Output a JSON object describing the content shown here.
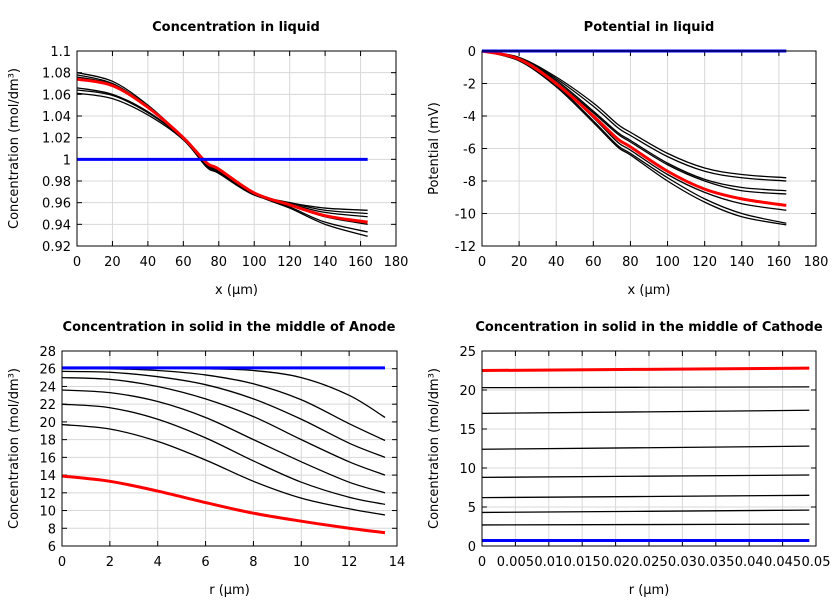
{
  "chart_data": [
    {
      "type": "line",
      "title": "Concentration in liquid",
      "xlabel": "x (µm)",
      "ylabel": "Concentration (mol/dm³)",
      "xlim": [
        0,
        180
      ],
      "ylim": [
        0.92,
        1.1
      ],
      "grid": true,
      "xticks": [
        "0",
        "20",
        "40",
        "60",
        "80",
        "100",
        "120",
        "140",
        "160",
        "180"
      ],
      "yticks": [
        "0.92",
        "0.94",
        "0.96",
        "0.98",
        "1",
        "1.02",
        "1.04",
        "1.06",
        "1.08",
        "1.1"
      ],
      "x": [
        0,
        20,
        40,
        60,
        73,
        80,
        100,
        120,
        140,
        164
      ],
      "series": [
        {
          "color": "#000000",
          "values": [
            1.08,
            1.072,
            1.05,
            1.02,
            0.996,
            0.99,
            0.968,
            0.955,
            0.94,
            0.929
          ]
        },
        {
          "color": "#000000",
          "values": [
            1.078,
            1.07,
            1.049,
            1.02,
            0.996,
            0.99,
            0.968,
            0.956,
            0.942,
            0.933
          ]
        },
        {
          "color": "#000000",
          "values": [
            1.076,
            1.069,
            1.048,
            1.02,
            0.997,
            0.991,
            0.969,
            0.958,
            0.947,
            0.94
          ]
        },
        {
          "color": "#000000",
          "values": [
            1.066,
            1.06,
            1.044,
            1.019,
            0.995,
            0.989,
            0.968,
            0.959,
            0.951,
            0.947
          ]
        },
        {
          "color": "#000000",
          "values": [
            1.064,
            1.059,
            1.043,
            1.019,
            0.994,
            0.988,
            0.968,
            0.96,
            0.953,
            0.95
          ]
        },
        {
          "color": "#000000",
          "values": [
            1.061,
            1.056,
            1.041,
            1.018,
            0.993,
            0.987,
            0.967,
            0.96,
            0.955,
            0.953
          ]
        },
        {
          "color": "#ff0000",
          "values": [
            1.074,
            1.068,
            1.048,
            1.02,
            0.997,
            0.991,
            0.969,
            0.958,
            0.948,
            0.942
          ]
        },
        {
          "color": "#0000ff",
          "values": [
            1,
            1,
            1,
            1,
            1,
            1,
            1,
            1,
            1,
            1
          ]
        }
      ]
    },
    {
      "type": "line",
      "title": "Potential in liquid",
      "xlabel": "x (µm)",
      "ylabel": "Potential (mV)",
      "xlim": [
        0,
        180
      ],
      "ylim": [
        -12,
        0
      ],
      "grid": true,
      "xticks": [
        "0",
        "20",
        "40",
        "60",
        "80",
        "100",
        "120",
        "140",
        "160",
        "180"
      ],
      "yticks": [
        "-12",
        "-10",
        "-8",
        "-6",
        "-4",
        "-2",
        "0"
      ],
      "x": [
        0,
        20,
        40,
        60,
        73,
        80,
        100,
        120,
        140,
        164
      ],
      "series": [
        {
          "color": "#000000",
          "values": [
            0,
            -0.4,
            -1.6,
            -3.2,
            -4.5,
            -5.0,
            -6.3,
            -7.2,
            -7.6,
            -7.8
          ]
        },
        {
          "color": "#000000",
          "values": [
            0,
            -0.4,
            -1.7,
            -3.4,
            -4.7,
            -5.2,
            -6.5,
            -7.4,
            -7.8,
            -8.0
          ]
        },
        {
          "color": "#000000",
          "values": [
            0,
            -0.5,
            -1.8,
            -3.7,
            -5.0,
            -5.5,
            -6.9,
            -7.9,
            -8.4,
            -8.6
          ]
        },
        {
          "color": "#000000",
          "values": [
            0,
            -0.5,
            -1.9,
            -3.8,
            -5.1,
            -5.6,
            -7.0,
            -8.0,
            -8.6,
            -8.8
          ]
        },
        {
          "color": "#000000",
          "values": [
            0,
            -0.5,
            -2.0,
            -4.1,
            -5.6,
            -6.1,
            -7.6,
            -8.7,
            -9.4,
            -9.8
          ]
        },
        {
          "color": "#000000",
          "values": [
            0,
            -0.6,
            -2.1,
            -4.3,
            -5.8,
            -6.3,
            -7.8,
            -9.1,
            -10.0,
            -10.6
          ]
        },
        {
          "color": "#000000",
          "values": [
            0,
            -0.6,
            -2.2,
            -4.4,
            -5.9,
            -6.4,
            -8.0,
            -9.3,
            -10.2,
            -10.7
          ]
        },
        {
          "color": "#ff0000",
          "values": [
            0,
            -0.5,
            -2.0,
            -4.0,
            -5.4,
            -5.9,
            -7.4,
            -8.5,
            -9.1,
            -9.5
          ]
        },
        {
          "color": "#0000ff",
          "values": [
            0,
            0,
            0,
            0,
            0,
            0,
            0,
            0,
            0,
            0
          ]
        }
      ]
    },
    {
      "type": "line",
      "title": "Concentration in solid in the middle of Anode",
      "xlabel": "r (µm)",
      "ylabel": "Concentration (mol/dm³)",
      "xlim": [
        0,
        14
      ],
      "ylim": [
        6,
        28
      ],
      "grid": true,
      "xticks": [
        "0",
        "2",
        "4",
        "6",
        "8",
        "10",
        "12",
        "14"
      ],
      "yticks": [
        "6",
        "8",
        "10",
        "12",
        "14",
        "16",
        "18",
        "20",
        "22",
        "24",
        "26",
        "28"
      ],
      "x": [
        0,
        2,
        4,
        6,
        8,
        10,
        12,
        13.5
      ],
      "series": [
        {
          "color": "#000000",
          "values": [
            26.1,
            26.1,
            26.1,
            26.0,
            25.8,
            25.0,
            23.0,
            20.5
          ]
        },
        {
          "color": "#000000",
          "values": [
            26.0,
            26.0,
            25.8,
            25.3,
            24.3,
            22.5,
            19.8,
            17.9
          ]
        },
        {
          "color": "#000000",
          "values": [
            25.7,
            25.6,
            25.1,
            24.2,
            22.6,
            20.3,
            17.6,
            16.0
          ]
        },
        {
          "color": "#000000",
          "values": [
            25.0,
            24.8,
            24.0,
            22.6,
            20.6,
            18.0,
            15.5,
            14.0
          ]
        },
        {
          "color": "#000000",
          "values": [
            23.6,
            23.3,
            22.3,
            20.5,
            18.0,
            15.5,
            13.2,
            12.0
          ]
        },
        {
          "color": "#000000",
          "values": [
            22.0,
            21.6,
            20.3,
            18.2,
            15.6,
            13.2,
            11.5,
            10.7
          ]
        },
        {
          "color": "#000000",
          "values": [
            19.7,
            19.2,
            17.8,
            15.7,
            13.3,
            11.4,
            10.2,
            9.5
          ]
        },
        {
          "color": "#ff0000",
          "values": [
            13.9,
            13.3,
            12.2,
            10.9,
            9.7,
            8.8,
            8.0,
            7.5
          ]
        },
        {
          "color": "#0000ff",
          "values": [
            26.1,
            26.1,
            26.1,
            26.1,
            26.1,
            26.1,
            26.1,
            26.1
          ]
        }
      ]
    },
    {
      "type": "line",
      "title": "Concentration in solid in the middle of Cathode",
      "xlabel": "r (µm)",
      "ylabel": "Concentration (mol/dm³)",
      "xlim": [
        0,
        0.05
      ],
      "ylim": [
        0,
        25
      ],
      "grid": true,
      "xticks": [
        "0",
        "0.005",
        "0.01",
        "0.015",
        "0.02",
        "0.025",
        "0.03",
        "0.035",
        "0.04",
        "0.045",
        "0.05"
      ],
      "yticks": [
        "0",
        "5",
        "10",
        "15",
        "20",
        "25"
      ],
      "x": [
        0,
        0.049
      ],
      "series": [
        {
          "color": "#000000",
          "values": [
            20.3,
            20.4
          ]
        },
        {
          "color": "#000000",
          "values": [
            17.0,
            17.4
          ]
        },
        {
          "color": "#000000",
          "values": [
            12.4,
            12.8
          ]
        },
        {
          "color": "#000000",
          "values": [
            8.8,
            9.1
          ]
        },
        {
          "color": "#000000",
          "values": [
            6.2,
            6.5
          ]
        },
        {
          "color": "#000000",
          "values": [
            4.3,
            4.6
          ]
        },
        {
          "color": "#000000",
          "values": [
            2.7,
            2.8
          ]
        },
        {
          "color": "#ff0000",
          "values": [
            22.5,
            22.8
          ]
        },
        {
          "color": "#0000ff",
          "values": [
            0.7,
            0.7
          ]
        }
      ]
    }
  ]
}
